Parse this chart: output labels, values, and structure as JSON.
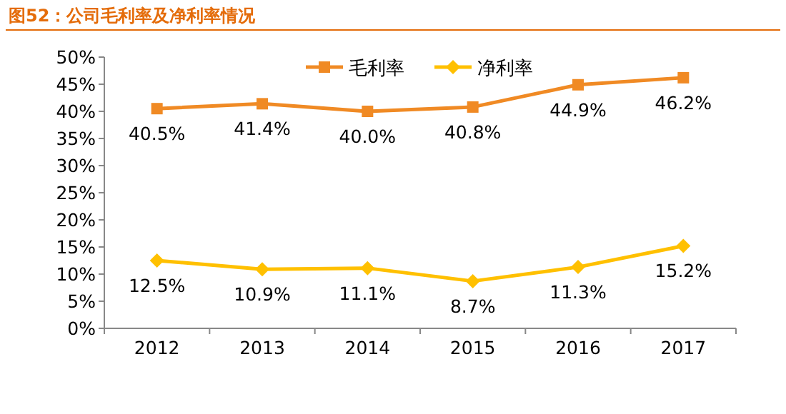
{
  "chart_data": {
    "type": "line",
    "title": "图52：公司毛利率及净利率情况",
    "categories": [
      "2012",
      "2013",
      "2014",
      "2015",
      "2016",
      "2017"
    ],
    "series": [
      {
        "name": "毛利率",
        "color": "#f08a24",
        "marker": "square",
        "values": [
          40.5,
          41.4,
          40.0,
          40.8,
          44.9,
          46.2
        ],
        "value_labels": [
          "40.5%",
          "41.4%",
          "40.0%",
          "40.8%",
          "44.9%",
          "46.2%"
        ]
      },
      {
        "name": "净利率",
        "color": "#ffc000",
        "marker": "diamond",
        "values": [
          12.5,
          10.9,
          11.1,
          8.7,
          11.3,
          15.2
        ],
        "value_labels": [
          "12.5%",
          "10.9%",
          "11.1%",
          "8.7%",
          "11.3%",
          "15.2%"
        ]
      }
    ],
    "ylim": [
      0,
      50
    ],
    "yticks": [
      {
        "value": 0,
        "label": "0%"
      },
      {
        "value": 5,
        "label": "5%"
      },
      {
        "value": 10,
        "label": "10%"
      },
      {
        "value": 15,
        "label": "15%"
      },
      {
        "value": 20,
        "label": "20%"
      },
      {
        "value": 25,
        "label": "25%"
      },
      {
        "value": 30,
        "label": "30%"
      },
      {
        "value": 35,
        "label": "35%"
      },
      {
        "value": 40,
        "label": "40%"
      },
      {
        "value": 45,
        "label": "45%"
      },
      {
        "value": 50,
        "label": "50%"
      }
    ],
    "legend": "top",
    "grid": false
  }
}
